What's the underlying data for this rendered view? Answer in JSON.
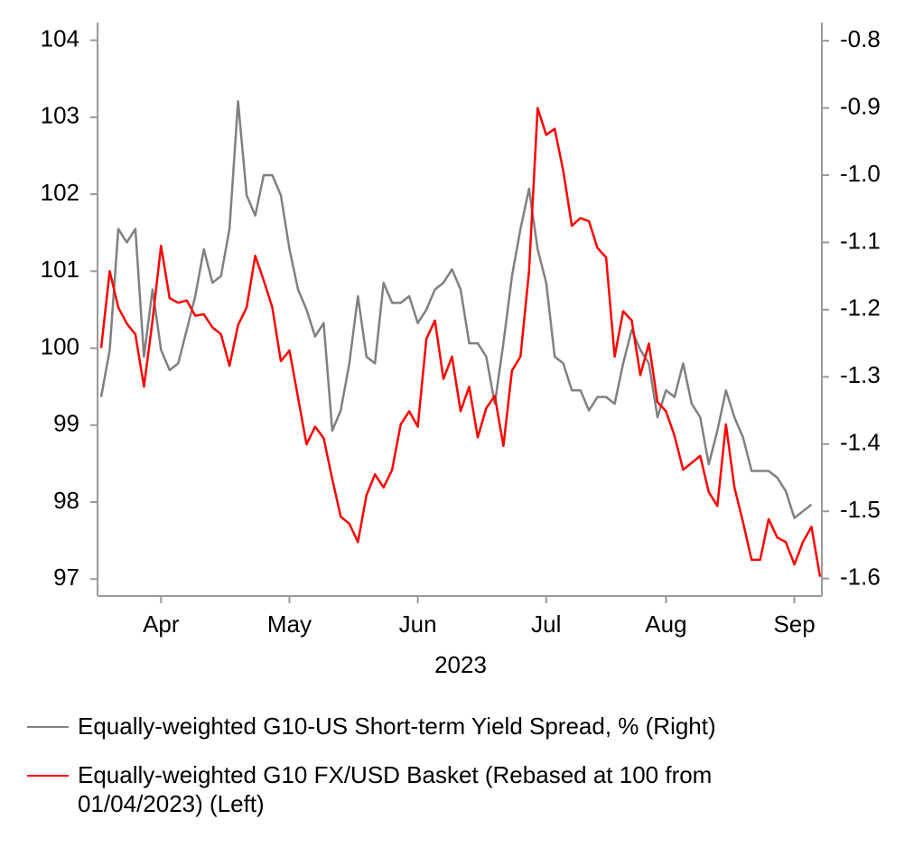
{
  "chart_data": {
    "type": "line",
    "x_label": "2023",
    "categories": [
      null,
      null,
      null,
      null,
      null,
      null,
      null,
      "Apr",
      null,
      null,
      null,
      null,
      null,
      null,
      null,
      null,
      null,
      null,
      null,
      null,
      null,
      null,
      "May",
      null,
      null,
      null,
      null,
      null,
      null,
      null,
      null,
      null,
      null,
      null,
      null,
      null,
      null,
      "Jun",
      null,
      null,
      null,
      null,
      null,
      null,
      null,
      null,
      null,
      null,
      null,
      null,
      null,
      null,
      "Jul",
      null,
      null,
      null,
      null,
      null,
      null,
      null,
      null,
      null,
      null,
      null,
      null,
      null,
      "Aug",
      null,
      null,
      null,
      null,
      null,
      null,
      null,
      null,
      null,
      null,
      null,
      null,
      null,
      null,
      "Sep",
      null,
      null,
      null
    ],
    "series": [
      {
        "name": "Equally-weighted G10-US Short-term Yield Spread, % (Right)",
        "color": "#808080",
        "axis": "y2",
        "values": [
          -1.33,
          -1.26,
          -1.08,
          -1.1,
          -1.08,
          -1.27,
          -1.17,
          -1.26,
          -1.29,
          -1.28,
          -1.23,
          -1.18,
          -1.11,
          -1.16,
          -1.15,
          -1.08,
          -0.89,
          -1.03,
          -1.06,
          -1.0,
          -1.0,
          -1.03,
          -1.11,
          -1.17,
          -1.2,
          -1.24,
          -1.22,
          -1.38,
          -1.35,
          -1.28,
          -1.18,
          -1.27,
          -1.28,
          -1.16,
          -1.19,
          -1.19,
          -1.18,
          -1.22,
          -1.2,
          -1.17,
          -1.16,
          -1.14,
          -1.17,
          -1.25,
          -1.25,
          -1.27,
          -1.34,
          -1.25,
          -1.15,
          -1.08,
          -1.02,
          -1.11,
          -1.16,
          -1.27,
          -1.28,
          -1.32,
          -1.32,
          -1.35,
          -1.33,
          -1.33,
          -1.34,
          -1.28,
          -1.23,
          -1.26,
          -1.28,
          -1.36,
          -1.32,
          -1.33,
          -1.28,
          -1.34,
          -1.36,
          -1.43,
          -1.38,
          -1.32,
          -1.36,
          -1.39,
          -1.44,
          -1.44,
          -1.44,
          -1.45,
          -1.47,
          -1.51,
          -1.5,
          -1.49,
          null
        ]
      },
      {
        "name": "Equally-weighted G10 FX/USD Basket (Rebased at 100 from 01/04/2023) (Left)",
        "color": "#ff0000",
        "values": [
          100.0,
          101.0,
          100.53,
          100.32,
          100.18,
          99.5,
          100.36,
          101.33,
          100.65,
          100.59,
          100.62,
          100.42,
          100.44,
          100.27,
          100.18,
          99.77,
          100.3,
          100.53,
          101.2,
          100.88,
          100.53,
          99.83,
          99.97,
          99.36,
          98.75,
          98.98,
          98.83,
          98.3,
          97.81,
          97.72,
          97.48,
          98.09,
          98.36,
          98.19,
          98.42,
          99.01,
          99.18,
          98.98,
          100.12,
          100.36,
          99.6,
          99.89,
          99.18,
          99.5,
          98.84,
          99.22,
          99.38,
          98.73,
          99.71,
          99.89,
          101.0,
          103.12,
          102.77,
          102.85,
          102.3,
          101.59,
          101.69,
          101.65,
          101.3,
          101.18,
          99.89,
          100.48,
          100.36,
          99.65,
          100.06,
          99.3,
          99.18,
          98.86,
          98.42,
          98.51,
          98.6,
          98.13,
          97.95,
          99.01,
          98.19,
          97.74,
          97.25,
          97.25,
          97.78,
          97.54,
          97.48,
          97.19,
          97.48,
          97.68,
          97.03
        ]
      }
    ],
    "ylim": [
      96.78,
      104.23
    ],
    "yticks": [
      97,
      98,
      99,
      100,
      101,
      102,
      103,
      104
    ],
    "y2lim": [
      -1.626,
      -0.773
    ],
    "y2ticks": [
      {
        "value": -1.6,
        "label": "-1.6"
      },
      -1.5,
      -1.4,
      -1.3,
      -1.2,
      -1.1,
      {
        "value": -1.0,
        "label": "-1.0"
      },
      {
        "value": -0.9,
        "label": "-0.9"
      },
      {
        "value": -0.8,
        "label": "-0.8"
      }
    ]
  }
}
